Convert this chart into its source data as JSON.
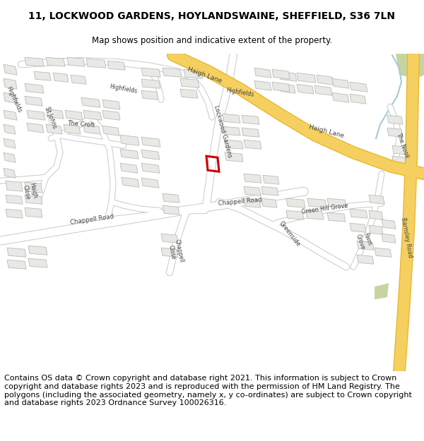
{
  "title": "11, LOCKWOOD GARDENS, HOYLANDSWAINE, SHEFFIELD, S36 7LN",
  "subtitle": "Map shows position and indicative extent of the property.",
  "footer": "Contains OS data © Crown copyright and database right 2021. This information is subject to Crown copyright and database rights 2023 and is reproduced with the permission of HM Land Registry. The polygons (including the associated geometry, namely x, y co-ordinates) are subject to Crown copyright and database rights 2023 Ordnance Survey 100026316.",
  "map_bg": "#f8f8f6",
  "road_color": "#ffffff",
  "road_outline": "#cccccc",
  "building_color": "#e8e8e4",
  "building_outline": "#bbbbbb",
  "highlight_color": "#cc0000",
  "yellow_road_color": "#f5d060",
  "yellow_road_outline": "#e8b830",
  "green_area_color": "#c8d8a8",
  "footer_fontsize": 8.0,
  "title_fontsize": 10,
  "subtitle_fontsize": 8.5
}
